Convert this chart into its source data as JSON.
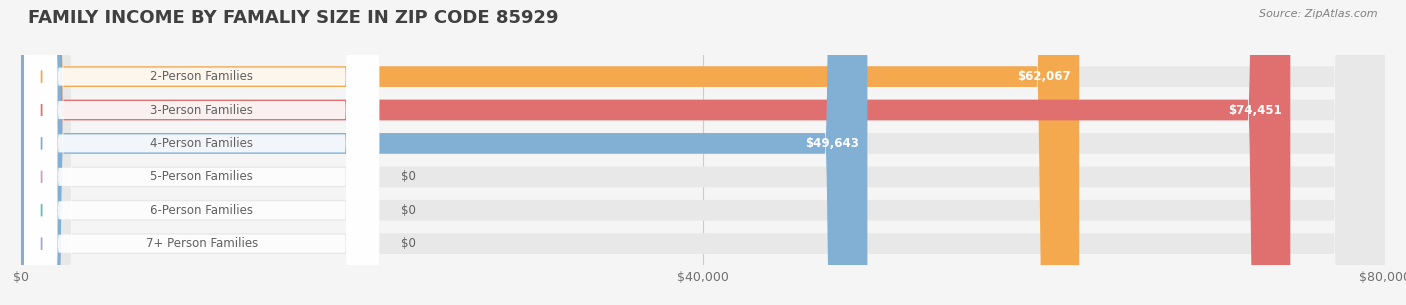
{
  "title": "FAMILY INCOME BY FAMALIY SIZE IN ZIP CODE 85929",
  "source": "Source: ZipAtlas.com",
  "categories": [
    "2-Person Families",
    "3-Person Families",
    "4-Person Families",
    "5-Person Families",
    "6-Person Families",
    "7+ Person Families"
  ],
  "values": [
    62067,
    74451,
    49643,
    0,
    0,
    0
  ],
  "bar_colors": [
    "#f5a94e",
    "#e07070",
    "#82afd4",
    "#c9a0c9",
    "#5dbfb0",
    "#a0a8d8"
  ],
  "label_colors": [
    "#f5a94e",
    "#e07070",
    "#82afd4",
    "#c9a0c9",
    "#5dbfb0",
    "#a0a8d8"
  ],
  "value_labels": [
    "$62,067",
    "$74,451",
    "$49,643",
    "$0",
    "$0",
    "$0"
  ],
  "xlim": [
    0,
    80000
  ],
  "xticks": [
    0,
    40000,
    80000
  ],
  "xtick_labels": [
    "$0",
    "$40,000",
    "$80,000"
  ],
  "bg_color": "#f5f5f5",
  "bar_bg_color": "#e8e8e8",
  "title_color": "#404040",
  "source_color": "#808080",
  "label_text_color": "#606060",
  "title_fontsize": 13,
  "bar_height": 0.62,
  "bar_label_fontsize": 8.5,
  "value_label_fontsize": 8.5,
  "axis_label_fontsize": 9
}
